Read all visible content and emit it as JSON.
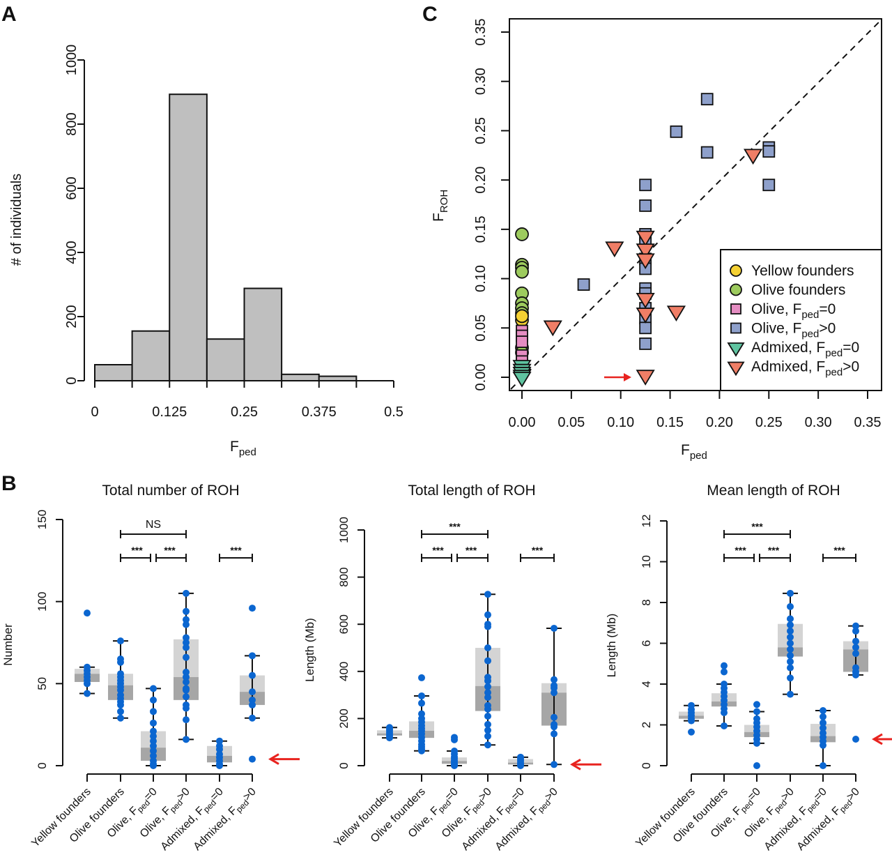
{
  "panels": {
    "A": {
      "label": "A"
    },
    "B": {
      "label": "B"
    },
    "C": {
      "label": "C"
    }
  },
  "chart_data": [
    {
      "id": "A",
      "type": "bar",
      "subtype": "histogram",
      "title": "",
      "xlabel": "F",
      "xlabel_sub": "ped",
      "ylabel": "# of individuals",
      "bin_edges": [
        0,
        0.0625,
        0.125,
        0.1875,
        0.25,
        0.3125,
        0.375,
        0.4375,
        0.5
      ],
      "values": [
        50,
        155,
        893,
        130,
        288,
        20,
        14,
        0
      ],
      "xlim": [
        0,
        0.5
      ],
      "ylim": [
        0,
        1000
      ],
      "xticks": [
        "0",
        "0.125",
        "0.25",
        "0.375",
        "0.5"
      ],
      "xtick_values": [
        0,
        0.125,
        0.25,
        0.375,
        0.5
      ],
      "yticks": [
        "0",
        "200",
        "400",
        "600",
        "800",
        "1000"
      ],
      "ytick_values": [
        0,
        200,
        400,
        600,
        800,
        1000
      ],
      "bar_color": "#bfbfbf"
    },
    {
      "id": "C",
      "type": "scatter",
      "xlabel": "F",
      "xlabel_sub": "ped",
      "ylabel": "F",
      "ylabel_sub": "ROH",
      "xlim": [
        0,
        0.35
      ],
      "ylim": [
        0,
        0.35
      ],
      "xticks": [
        "0.00",
        "0.05",
        "0.10",
        "0.15",
        "0.20",
        "0.25",
        "0.30",
        "0.35"
      ],
      "yticks": [
        "0.00",
        "0.05",
        "0.10",
        "0.15",
        "0.20",
        "0.25",
        "0.30",
        "0.35"
      ],
      "tick_values": [
        0,
        0.05,
        0.1,
        0.15,
        0.2,
        0.25,
        0.3,
        0.35
      ],
      "reference_line": "y = x (dashed)",
      "legend_position": "bottom-right",
      "annotation": "red arrow pointing to Admixed Fped>0 point at (0.125, 0.00)",
      "series": [
        {
          "name": "Yellow founders",
          "label_main": "Yellow founders",
          "label_sub": "",
          "label_tail": "",
          "shape": "circle",
          "color": "#f5d133",
          "points": [
            [
              0,
              0.058
            ],
            [
              0,
              0.062
            ]
          ]
        },
        {
          "name": "Olive founders",
          "label_main": "Olive founders",
          "label_sub": "",
          "label_tail": "",
          "shape": "circle",
          "color": "#9dcb5e",
          "points": [
            [
              0,
              0.145
            ],
            [
              0,
              0.114
            ],
            [
              0,
              0.111
            ],
            [
              0,
              0.107
            ],
            [
              0,
              0.085
            ],
            [
              0,
              0.075
            ],
            [
              0,
              0.07
            ],
            [
              0,
              0.065
            ],
            [
              0,
              0.03
            ],
            [
              0,
              0.025
            ]
          ]
        },
        {
          "name": "Olive, Fped=0",
          "label_main": "Olive, F",
          "label_sub": "ped",
          "label_tail": "=0",
          "shape": "square",
          "color": "#e58dc2",
          "points": [
            [
              0,
              0.047
            ],
            [
              0,
              0.042
            ],
            [
              0,
              0.036
            ],
            [
              0,
              0.022
            ],
            [
              0,
              0.016
            ]
          ]
        },
        {
          "name": "Olive, Fped>0",
          "label_main": "Olive, F",
          "label_sub": "ped",
          "label_tail": ">0",
          "shape": "square",
          "color": "#8ea0cb",
          "points": [
            [
              0.0625,
              0.094
            ],
            [
              0.125,
              0.195
            ],
            [
              0.125,
              0.174
            ],
            [
              0.125,
              0.145
            ],
            [
              0.125,
              0.14
            ],
            [
              0.125,
              0.12
            ],
            [
              0.125,
              0.11
            ],
            [
              0.125,
              0.09
            ],
            [
              0.125,
              0.085
            ],
            [
              0.125,
              0.07
            ],
            [
              0.125,
              0.06
            ],
            [
              0.125,
              0.05
            ],
            [
              0.125,
              0.034
            ],
            [
              0.15625,
              0.249
            ],
            [
              0.1875,
              0.282
            ],
            [
              0.1875,
              0.228
            ],
            [
              0.25,
              0.233
            ],
            [
              0.25,
              0.229
            ],
            [
              0.25,
              0.195
            ]
          ]
        },
        {
          "name": "Admixed, Fped=0",
          "label_main": "Admixed, F",
          "label_sub": "ped",
          "label_tail": "=0",
          "shape": "triangle-down",
          "color": "#5fc4a0",
          "points": [
            [
              0,
              0.012
            ],
            [
              0,
              0.008
            ],
            [
              0,
              0.005
            ],
            [
              0,
              0.002
            ],
            [
              0,
              0.0
            ]
          ]
        },
        {
          "name": "Admixed, Fped>0",
          "label_main": "Admixed, F",
          "label_sub": "ped",
          "label_tail": ">0",
          "shape": "triangle-down",
          "color": "#f07e66",
          "points": [
            [
              0.03125,
              0.052
            ],
            [
              0.09375,
              0.132
            ],
            [
              0.125,
              0.143
            ],
            [
              0.125,
              0.13
            ],
            [
              0.125,
              0.12
            ],
            [
              0.125,
              0.08
            ],
            [
              0.125,
              0.065
            ],
            [
              0.125,
              0.002
            ],
            [
              0.15625,
              0.067
            ],
            [
              0.234,
              0.226
            ]
          ]
        }
      ]
    },
    {
      "id": "B1",
      "type": "box",
      "title": "Total number of ROH",
      "ylabel": "Number",
      "ylim": [
        0,
        150
      ],
      "yticks": [
        "0",
        "50",
        "100",
        "150"
      ],
      "ytick_values": [
        0,
        50,
        100,
        150
      ],
      "categories": [
        "Yellow founders",
        "Olive founders",
        "Olive, Fped=0",
        "Olive, Fped>0",
        "Admixed, Fped=0",
        "Admixed, Fped>0"
      ],
      "boxes": [
        {
          "whisker_low": 44,
          "q1": 51,
          "median": 56,
          "q3": 59,
          "whisker_high": 60,
          "points": [
            93,
            60,
            58,
            56,
            54,
            52,
            50,
            44
          ]
        },
        {
          "whisker_low": 29,
          "q1": 40,
          "median": 49,
          "q3": 56,
          "whisker_high": 76,
          "points": [
            76,
            65,
            63,
            56,
            54,
            52,
            50,
            48,
            46,
            43,
            41,
            39,
            37,
            33,
            29
          ]
        },
        {
          "whisker_low": 0,
          "q1": 3,
          "median": 11,
          "q3": 21,
          "whisker_high": 47,
          "points": [
            47,
            40,
            33,
            26,
            21,
            18,
            15,
            12,
            9,
            6,
            3,
            1,
            0
          ]
        },
        {
          "whisker_low": 16,
          "q1": 40,
          "median": 54,
          "q3": 77,
          "whisker_high": 105,
          "points": [
            105,
            94,
            89,
            86,
            78,
            75,
            72,
            66,
            57,
            54,
            51,
            47,
            46,
            42,
            37,
            35,
            28,
            16
          ]
        },
        {
          "whisker_low": 0,
          "q1": 2,
          "median": 6,
          "q3": 12,
          "whisker_high": 15,
          "points": [
            15,
            12,
            10,
            7,
            5,
            3,
            1,
            0
          ]
        },
        {
          "whisker_low": 29,
          "q1": 37,
          "median": 45,
          "q3": 55,
          "whisker_high": 67,
          "points": [
            96,
            67,
            55,
            45,
            40,
            37,
            29,
            4
          ]
        }
      ],
      "significance": [
        {
          "from": 1,
          "to": 3,
          "label": "NS",
          "level": 2
        },
        {
          "from": 1,
          "to": 2,
          "label": "***",
          "level": 1
        },
        {
          "from": 2,
          "to": 3,
          "label": "***",
          "level": 1
        },
        {
          "from": 4,
          "to": 5,
          "label": "***",
          "level": 1
        }
      ],
      "arrow_value": 4
    },
    {
      "id": "B2",
      "type": "box",
      "title": "Total length of ROH",
      "ylabel": "Length (Mb)",
      "ylim": [
        0,
        1000
      ],
      "yticks": [
        "0",
        "200",
        "400",
        "600",
        "800",
        "1000"
      ],
      "ytick_values": [
        0,
        200,
        400,
        600,
        800,
        1000
      ],
      "categories": [
        "Yellow founders",
        "Olive founders",
        "Olive, Fped=0",
        "Olive, Fped>0",
        "Admixed, Fped=0",
        "Admixed, Fped>0"
      ],
      "boxes": [
        {
          "whisker_low": 118,
          "q1": 128,
          "median": 137,
          "q3": 150,
          "whisker_high": 162,
          "points": [
            162,
            155,
            148,
            140,
            133,
            125,
            118
          ]
        },
        {
          "whisker_low": 63,
          "q1": 118,
          "median": 148,
          "q3": 188,
          "whisker_high": 296,
          "points": [
            373,
            296,
            265,
            220,
            200,
            185,
            170,
            158,
            148,
            135,
            120,
            105,
            90,
            80,
            70,
            63
          ]
        },
        {
          "whisker_low": 0,
          "q1": 8,
          "median": 20,
          "q3": 35,
          "whisker_high": 62,
          "points": [
            120,
            110,
            62,
            50,
            38,
            30,
            22,
            15,
            8,
            3,
            0
          ]
        },
        {
          "whisker_low": 88,
          "q1": 232,
          "median": 338,
          "q3": 500,
          "whisker_high": 727,
          "points": [
            727,
            640,
            600,
            590,
            500,
            445,
            375,
            360,
            335,
            310,
            290,
            255,
            240,
            210,
            175,
            150,
            125,
            88
          ]
        },
        {
          "whisker_low": 0,
          "q1": 5,
          "median": 13,
          "q3": 28,
          "whisker_high": 36,
          "points": [
            36,
            28,
            20,
            12,
            5,
            0
          ]
        },
        {
          "whisker_low": 5,
          "q1": 170,
          "median": 310,
          "q3": 350,
          "whisker_high": 583,
          "points": [
            583,
            365,
            340,
            330,
            310,
            205,
            175,
            165,
            135,
            5
          ]
        }
      ],
      "significance": [
        {
          "from": 1,
          "to": 3,
          "label": "***",
          "level": 2
        },
        {
          "from": 1,
          "to": 2,
          "label": "***",
          "level": 1
        },
        {
          "from": 2,
          "to": 3,
          "label": "***",
          "level": 1
        },
        {
          "from": 4,
          "to": 5,
          "label": "***",
          "level": 1
        }
      ],
      "arrow_value": 5
    },
    {
      "id": "B3",
      "type": "box",
      "title": "Mean length of ROH",
      "ylabel": "Length (Mb)",
      "ylim": [
        0,
        12
      ],
      "yticks": [
        "0",
        "2",
        "4",
        "6",
        "8",
        "10",
        "12"
      ],
      "ytick_values": [
        0,
        2,
        4,
        6,
        8,
        10,
        12
      ],
      "categories": [
        "Yellow founders",
        "Olive founders",
        "Olive, Fped=0",
        "Olive, Fped>0",
        "Admixed, Fped=0",
        "Admixed, Fped>0"
      ],
      "boxes": [
        {
          "whisker_low": 2.2,
          "q1": 2.3,
          "median": 2.45,
          "q3": 2.65,
          "whisker_high": 2.95,
          "points": [
            2.95,
            2.75,
            2.6,
            2.45,
            2.3,
            2.2,
            1.65
          ]
        },
        {
          "whisker_low": 1.95,
          "q1": 2.9,
          "median": 3.15,
          "q3": 3.55,
          "whisker_high": 4.0,
          "points": [
            4.9,
            4.6,
            4.0,
            3.8,
            3.6,
            3.4,
            3.2,
            3.0,
            2.8,
            2.6,
            1.95
          ]
        },
        {
          "whisker_low": 1.1,
          "q1": 1.4,
          "median": 1.65,
          "q3": 2.0,
          "whisker_high": 2.65,
          "points": [
            3.0,
            2.65,
            2.3,
            2.1,
            1.9,
            1.7,
            1.5,
            1.3,
            1.1,
            0
          ]
        },
        {
          "whisker_low": 3.5,
          "q1": 5.35,
          "median": 5.8,
          "q3": 6.95,
          "whisker_high": 8.45,
          "points": [
            8.45,
            7.8,
            7.2,
            6.9,
            6.6,
            6.3,
            6.0,
            5.7,
            5.4,
            5.1,
            4.8,
            4.3,
            3.5
          ]
        },
        {
          "whisker_low": 0,
          "q1": 1.15,
          "median": 1.45,
          "q3": 2.05,
          "whisker_high": 2.7,
          "points": [
            2.7,
            2.4,
            2.1,
            1.85,
            1.6,
            1.4,
            1.2,
            1.0,
            0
          ]
        },
        {
          "whisker_low": 4.45,
          "q1": 4.6,
          "median": 5.7,
          "q3": 6.1,
          "whisker_high": 6.85,
          "points": [
            6.85,
            6.6,
            6.1,
            5.8,
            5.5,
            4.8,
            4.6,
            4.45,
            1.3
          ]
        }
      ],
      "significance": [
        {
          "from": 1,
          "to": 3,
          "label": "***",
          "level": 2
        },
        {
          "from": 1,
          "to": 2,
          "label": "***",
          "level": 1
        },
        {
          "from": 2,
          "to": 3,
          "label": "***",
          "level": 1
        },
        {
          "from": 4,
          "to": 5,
          "label": "***",
          "level": 1
        }
      ],
      "arrow_value": 1.3
    }
  ],
  "colors": {
    "point_blue": "#0b66d0",
    "box_light": "#d4d4d4",
    "box_dark": "#a6a6a6",
    "arrow_red": "#e8231f"
  },
  "category_labels": [
    {
      "main": "Yellow founders",
      "sub": "",
      "tail": ""
    },
    {
      "main": "Olive founders",
      "sub": "",
      "tail": ""
    },
    {
      "main": "Olive, F",
      "sub": "ped",
      "tail": "=0"
    },
    {
      "main": "Olive, F",
      "sub": "ped",
      "tail": ">0"
    },
    {
      "main": "Admixed, F",
      "sub": "ped",
      "tail": "=0"
    },
    {
      "main": "Admixed, F",
      "sub": "ped",
      "tail": ">0"
    }
  ]
}
